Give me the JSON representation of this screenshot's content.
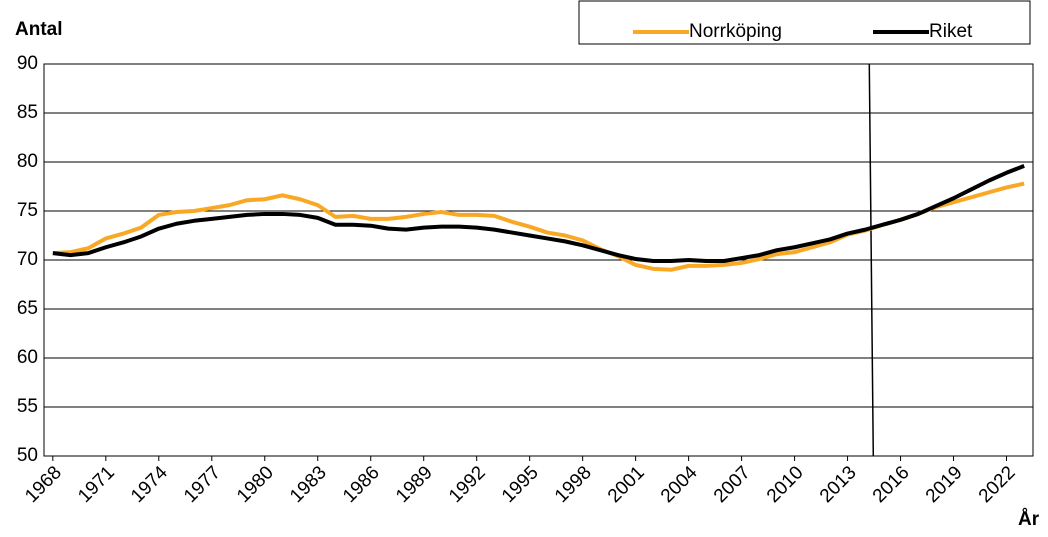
{
  "chart_data": {
    "type": "line",
    "y_label": "Antal",
    "x_label": "År",
    "categories": [
      "1968",
      null,
      null,
      "1971",
      null,
      null,
      "1974",
      null,
      null,
      "1977",
      null,
      null,
      "1980",
      null,
      null,
      "1983",
      null,
      null,
      "1986",
      null,
      null,
      "1989",
      null,
      null,
      "1992",
      null,
      null,
      "1995",
      null,
      null,
      "1998",
      null,
      null,
      "2001",
      null,
      null,
      "2004",
      null,
      null,
      "2007",
      null,
      null,
      "2010",
      null,
      null,
      "2013",
      null,
      null,
      "2016",
      null,
      null,
      "2019",
      null,
      null,
      "2022",
      null
    ],
    "series": [
      {
        "name": "Norrköping",
        "color": "#f9a825",
        "values": [
          70.7,
          70.8,
          71.2,
          72.2,
          72.7,
          73.3,
          74.6,
          74.9,
          75.0,
          75.3,
          75.6,
          76.1,
          76.2,
          76.6,
          76.2,
          75.6,
          74.4,
          74.5,
          74.2,
          74.2,
          74.4,
          74.7,
          74.9,
          74.6,
          74.6,
          74.5,
          73.9,
          73.4,
          72.8,
          72.5,
          72.0,
          71.1,
          70.4,
          69.5,
          69.1,
          69.0,
          69.4,
          69.4,
          69.5,
          69.7,
          70.1,
          70.6,
          70.8,
          71.3,
          71.8,
          72.6,
          73.0,
          73.6,
          74.1,
          74.7,
          75.4,
          75.9,
          76.4,
          76.9,
          77.4,
          77.8
        ]
      },
      {
        "name": "Riket",
        "color": "#000000",
        "values": [
          70.7,
          70.5,
          70.7,
          71.3,
          71.8,
          72.4,
          73.2,
          73.7,
          74.0,
          74.2,
          74.4,
          74.6,
          74.7,
          74.7,
          74.6,
          74.3,
          73.6,
          73.6,
          73.5,
          73.2,
          73.1,
          73.3,
          73.4,
          73.4,
          73.3,
          73.1,
          72.8,
          72.5,
          72.2,
          71.9,
          71.5,
          71.0,
          70.5,
          70.1,
          69.9,
          69.9,
          70.0,
          69.9,
          69.9,
          70.2,
          70.5,
          71.0,
          71.3,
          71.7,
          72.1,
          72.7,
          73.1,
          73.6,
          74.1,
          74.7,
          75.5,
          76.3,
          77.2,
          78.1,
          78.9,
          79.6
        ]
      }
    ],
    "ylim": [
      50,
      90
    ],
    "yticks": [
      50,
      55,
      60,
      65,
      70,
      75,
      80,
      85,
      90
    ],
    "grid": true,
    "divider_index": 46.4
  }
}
